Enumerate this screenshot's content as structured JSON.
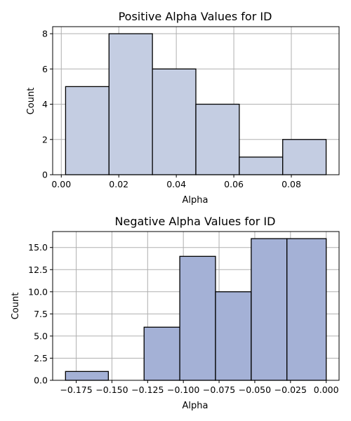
{
  "chart_data": [
    {
      "type": "bar",
      "title": "Positive Alpha Values for ID",
      "xlabel": "Alpha",
      "ylabel": "Count",
      "bin_edges": [
        0.0015,
        0.0166,
        0.0317,
        0.0468,
        0.0619,
        0.077,
        0.0921
      ],
      "values": [
        5,
        8,
        6,
        4,
        1,
        2
      ],
      "xlim": [
        -0.003,
        0.0966
      ],
      "ylim": [
        0,
        8.4
      ],
      "xticks": [
        0.0,
        0.02,
        0.04,
        0.06,
        0.08
      ],
      "xtick_labels": [
        "0.00",
        "0.02",
        "0.04",
        "0.06",
        "0.08"
      ],
      "yticks": [
        0,
        2,
        4,
        6,
        8
      ],
      "ytick_labels": [
        "0",
        "2",
        "4",
        "6",
        "8"
      ],
      "grid": true,
      "color": "#c4cde2"
    },
    {
      "type": "bar",
      "title": "Negative Alpha Values for ID",
      "xlabel": "Alpha",
      "ylabel": "Count",
      "bin_edges": [
        -0.1825,
        -0.1525,
        -0.1275,
        -0.1025,
        -0.0775,
        -0.0525,
        -0.0275,
        0.0
      ],
      "values": [
        1,
        0,
        6,
        14,
        10,
        16,
        16
      ],
      "xlim": [
        -0.1915,
        0.009
      ],
      "ylim": [
        0,
        16.8
      ],
      "xticks": [
        -0.175,
        -0.15,
        -0.125,
        -0.1,
        -0.075,
        -0.05,
        -0.025,
        0.0
      ],
      "xtick_labels": [
        "−0.175",
        "−0.150",
        "−0.125",
        "−0.100",
        "−0.075",
        "−0.050",
        "−0.025",
        "0.000"
      ],
      "yticks": [
        0,
        2.5,
        5,
        7.5,
        10,
        12.5,
        15
      ],
      "ytick_labels": [
        "0.0",
        "2.5",
        "5.0",
        "7.5",
        "10.0",
        "12.5",
        "15.0"
      ],
      "grid": true,
      "color": "#a4b1d6"
    }
  ]
}
